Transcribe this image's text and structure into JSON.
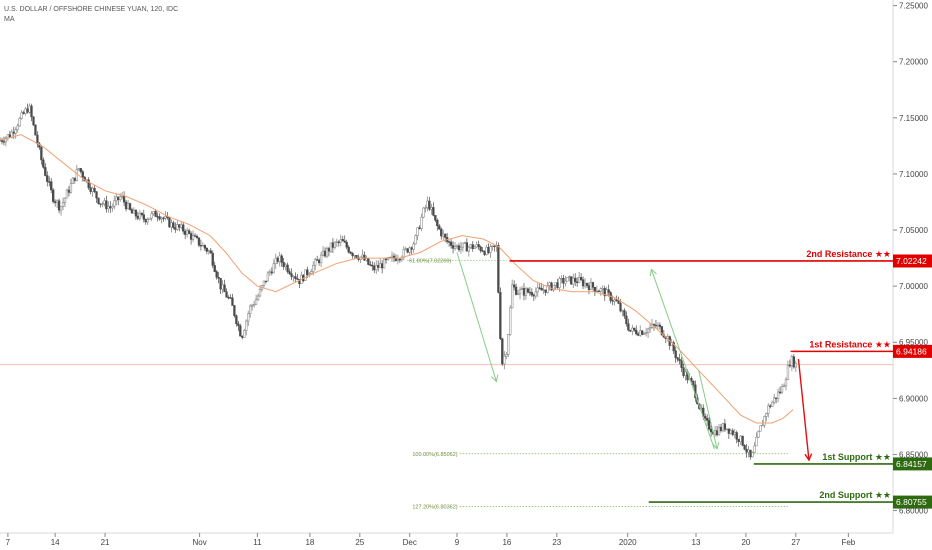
{
  "header": {
    "title": "U.S. DOLLAR / OFFSHORE CHINESE YUAN, 120, IDC",
    "indicator": "MA"
  },
  "colors": {
    "up": "#7a7a7a",
    "down": "#4a4a4a",
    "ma": "#f0a070",
    "resistance": "#e00000",
    "support": "#2e6b10",
    "arrow_green": "#88cc88",
    "arrow_red": "#e01010",
    "fib": "#8ab060"
  },
  "chart_data": {
    "type": "candlestick",
    "title": "U.S. DOLLAR / OFFSHORE CHINESE YUAN, 120, IDC",
    "ylim": [
      6.78,
      7.255
    ],
    "xlim": [
      0,
      34
    ],
    "y_ticks": [
      "7.25000",
      "7.20000",
      "7.15000",
      "7.10000",
      "7.05000",
      "7.00000",
      "6.95000",
      "6.90000",
      "6.85000",
      "6.80000"
    ],
    "x_ticks": [
      {
        "x": 0.3,
        "label": "7"
      },
      {
        "x": 2.1,
        "label": "14"
      },
      {
        "x": 4.0,
        "label": "21"
      },
      {
        "x": 7.6,
        "label": "Nov"
      },
      {
        "x": 9.8,
        "label": "11"
      },
      {
        "x": 11.8,
        "label": "18"
      },
      {
        "x": 13.7,
        "label": "25"
      },
      {
        "x": 15.6,
        "label": "Dec"
      },
      {
        "x": 17.4,
        "label": "9"
      },
      {
        "x": 19.3,
        "label": "16"
      },
      {
        "x": 21.2,
        "label": "23"
      },
      {
        "x": 23.9,
        "label": "2020"
      },
      {
        "x": 26.5,
        "label": "13"
      },
      {
        "x": 28.4,
        "label": "20"
      },
      {
        "x": 30.3,
        "label": "27"
      },
      {
        "x": 32.3,
        "label": "Feb"
      }
    ],
    "price_path": [
      [
        0.0,
        7.13
      ],
      [
        0.4,
        7.135
      ],
      [
        0.8,
        7.15
      ],
      [
        1.1,
        7.16
      ],
      [
        1.3,
        7.14
      ],
      [
        1.6,
        7.11
      ],
      [
        2.0,
        7.08
      ],
      [
        2.3,
        7.07
      ],
      [
        2.7,
        7.09
      ],
      [
        3.0,
        7.105
      ],
      [
        3.4,
        7.09
      ],
      [
        3.8,
        7.075
      ],
      [
        4.2,
        7.07
      ],
      [
        4.6,
        7.08
      ],
      [
        5.0,
        7.065
      ],
      [
        5.5,
        7.06
      ],
      [
        6.0,
        7.065
      ],
      [
        6.5,
        7.055
      ],
      [
        7.0,
        7.05
      ],
      [
        7.5,
        7.04
      ],
      [
        8.0,
        7.03
      ],
      [
        8.4,
        7.0
      ],
      [
        8.8,
        6.985
      ],
      [
        9.0,
        6.97
      ],
      [
        9.2,
        6.955
      ],
      [
        9.5,
        6.98
      ],
      [
        9.8,
        6.99
      ],
      [
        10.2,
        7.01
      ],
      [
        10.6,
        7.025
      ],
      [
        11.0,
        7.015
      ],
      [
        11.4,
        7.005
      ],
      [
        11.8,
        7.015
      ],
      [
        12.2,
        7.025
      ],
      [
        12.6,
        7.035
      ],
      [
        13.0,
        7.04
      ],
      [
        13.4,
        7.03
      ],
      [
        13.8,
        7.025
      ],
      [
        14.2,
        7.015
      ],
      [
        14.6,
        7.02
      ],
      [
        15.0,
        7.025
      ],
      [
        15.4,
        7.03
      ],
      [
        15.8,
        7.04
      ],
      [
        16.1,
        7.065
      ],
      [
        16.3,
        7.075
      ],
      [
        16.6,
        7.055
      ],
      [
        17.0,
        7.04
      ],
      [
        17.4,
        7.035
      ],
      [
        17.8,
        7.035
      ],
      [
        18.2,
        7.035
      ],
      [
        18.6,
        7.03
      ],
      [
        18.9,
        7.035
      ],
      [
        19.1,
        6.93
      ],
      [
        19.3,
        6.945
      ],
      [
        19.5,
        7.0
      ],
      [
        19.7,
        6.995
      ],
      [
        20.1,
        6.995
      ],
      [
        20.5,
        6.995
      ],
      [
        21.0,
        7.0
      ],
      [
        21.5,
        7.005
      ],
      [
        22.0,
        7.005
      ],
      [
        22.5,
        7.0
      ],
      [
        23.0,
        6.995
      ],
      [
        23.5,
        6.985
      ],
      [
        24.0,
        6.96
      ],
      [
        24.5,
        6.96
      ],
      [
        25.0,
        6.965
      ],
      [
        25.4,
        6.955
      ],
      [
        25.7,
        6.94
      ],
      [
        26.0,
        6.925
      ],
      [
        26.4,
        6.91
      ],
      [
        26.8,
        6.88
      ],
      [
        27.2,
        6.87
      ],
      [
        27.6,
        6.875
      ],
      [
        28.0,
        6.868
      ],
      [
        28.3,
        6.86
      ],
      [
        28.6,
        6.845
      ],
      [
        28.9,
        6.87
      ],
      [
        29.2,
        6.89
      ],
      [
        29.5,
        6.9
      ],
      [
        29.8,
        6.91
      ],
      [
        30.1,
        6.935
      ],
      [
        30.3,
        6.93
      ]
    ],
    "ma_line": [
      [
        0.0,
        7.13
      ],
      [
        0.8,
        7.135
      ],
      [
        1.6,
        7.125
      ],
      [
        2.4,
        7.11
      ],
      [
        3.2,
        7.095
      ],
      [
        4.0,
        7.085
      ],
      [
        4.8,
        7.08
      ],
      [
        5.6,
        7.072
      ],
      [
        6.4,
        7.062
      ],
      [
        7.2,
        7.055
      ],
      [
        8.0,
        7.045
      ],
      [
        8.6,
        7.03
      ],
      [
        9.2,
        7.012
      ],
      [
        9.8,
        7.0
      ],
      [
        10.5,
        6.995
      ],
      [
        11.2,
        7.003
      ],
      [
        12.0,
        7.012
      ],
      [
        12.8,
        7.02
      ],
      [
        13.6,
        7.025
      ],
      [
        14.4,
        7.025
      ],
      [
        15.2,
        7.025
      ],
      [
        16.0,
        7.03
      ],
      [
        16.8,
        7.04
      ],
      [
        17.6,
        7.045
      ],
      [
        18.4,
        7.042
      ],
      [
        19.0,
        7.035
      ],
      [
        19.6,
        7.02
      ],
      [
        20.3,
        7.005
      ],
      [
        21.0,
        6.998
      ],
      [
        21.8,
        6.995
      ],
      [
        22.6,
        6.995
      ],
      [
        23.4,
        6.99
      ],
      [
        24.2,
        6.978
      ],
      [
        25.0,
        6.962
      ],
      [
        25.8,
        6.945
      ],
      [
        26.6,
        6.925
      ],
      [
        27.4,
        6.905
      ],
      [
        28.2,
        6.885
      ],
      [
        28.8,
        6.878
      ],
      [
        29.4,
        6.878
      ],
      [
        29.8,
        6.882
      ],
      [
        30.2,
        6.89
      ]
    ],
    "reference_line": {
      "value": 6.93
    },
    "levels": [
      {
        "name": "2nd Resistance",
        "label": "2nd Resistance ★★",
        "value": 7.02242,
        "value_label": "7.02242",
        "kind": "resistance",
        "x_start": 19.4
      },
      {
        "name": "1st Resistance",
        "label": "1st Resistance ★★",
        "value": 6.94186,
        "value_label": "6.94186",
        "kind": "resistance",
        "x_start": 30.2
      },
      {
        "name": "1st Support",
        "label": "1st Support ★★",
        "value": 6.84157,
        "value_label": "6.84157",
        "kind": "support",
        "x_start": 28.7
      },
      {
        "name": "2nd Support",
        "label": "2nd Support ★★",
        "value": 6.80755,
        "value_label": "6.80755",
        "kind": "support",
        "x_start": 24.7
      }
    ],
    "fib_levels": [
      {
        "label": "61.80%(7.02269)",
        "value": 7.02269,
        "x_start": 15.5,
        "x_end": 19.3
      },
      {
        "label": "100.00%(6.85062)",
        "value": 6.85062,
        "x_start": 17.5,
        "x_end": 30.0
      },
      {
        "label": "127.20%(6.80362)",
        "value": 6.80362,
        "x_start": 17.5,
        "x_end": 30.0
      }
    ],
    "arrows": [
      {
        "from": [
          17.4,
          7.03
        ],
        "to": [
          18.9,
          6.915
        ],
        "color": "green"
      },
      {
        "from": [
          27.2,
          6.855
        ],
        "to": [
          24.8,
          7.015
        ],
        "color": "green"
      },
      {
        "from": [
          26.6,
          6.925
        ],
        "to": [
          27.3,
          6.855
        ],
        "color": "green"
      },
      {
        "from": [
          30.4,
          6.935
        ],
        "to": [
          30.8,
          6.845
        ],
        "color": "red"
      }
    ]
  }
}
